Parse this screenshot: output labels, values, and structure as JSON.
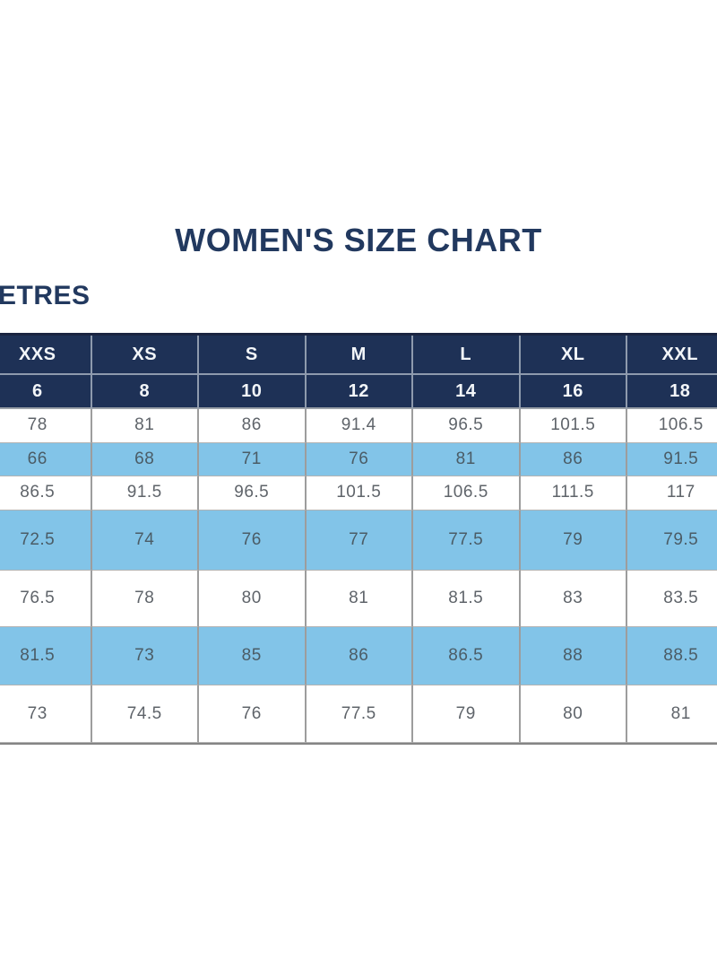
{
  "title": "WOMEN'S SIZE CHART",
  "unit_label_visible": "ETRES",
  "colors": {
    "navy_header_bg": "#1e3156",
    "title_text": "#22395f",
    "stripe_white": "#ffffff",
    "stripe_blue": "#82c4e8",
    "data_text": "#5f646a",
    "header_text": "#f3f6f9",
    "grid_line": "#9d9d9d"
  },
  "chart_data": {
    "type": "table",
    "title": "WOMEN'S SIZE CHART",
    "unit_label_visible": "ETRES",
    "columns": [
      "XXS",
      "XS",
      "S",
      "M",
      "L",
      "XL",
      "XXL"
    ],
    "size_numbers": [
      "6",
      "8",
      "10",
      "12",
      "14",
      "16",
      "18"
    ],
    "measurement_rows": [
      [
        "78",
        "81",
        "86",
        "91.4",
        "96.5",
        "101.5",
        "106.5"
      ],
      [
        "66",
        "68",
        "71",
        "76",
        "81",
        "86",
        "91.5"
      ],
      [
        "86.5",
        "91.5",
        "96.5",
        "101.5",
        "106.5",
        "111.5",
        "117"
      ],
      [
        "72.5",
        "74",
        "76",
        "77",
        "77.5",
        "79",
        "79.5"
      ],
      [
        "76.5",
        "78",
        "80",
        "81",
        "81.5",
        "83",
        "83.5"
      ],
      [
        "81.5",
        "73",
        "85",
        "86",
        "86.5",
        "88",
        "88.5"
      ],
      [
        "73",
        "74.5",
        "76",
        "77.5",
        "79",
        "80",
        "81"
      ]
    ],
    "layout_hints": {
      "row_striping": [
        "white",
        "blue",
        "white",
        "blue",
        "white",
        "blue",
        "white"
      ],
      "left_edge_cut_off": true,
      "right_edge_cut_off": true
    }
  }
}
